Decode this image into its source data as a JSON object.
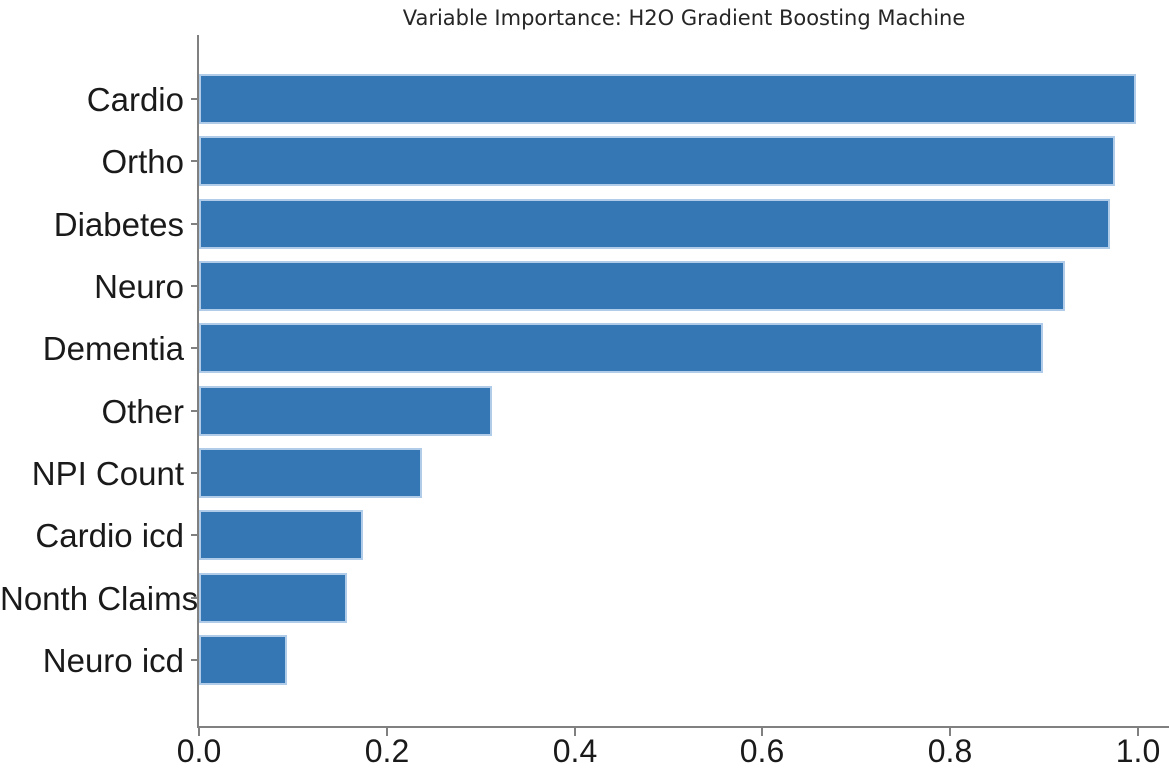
{
  "chart_data": {
    "type": "bar",
    "orientation": "horizontal",
    "title": "Variable Importance: H2O Gradient Boosting Machine",
    "categories": [
      "Cardio",
      "Ortho",
      "Diabetes",
      "Neuro",
      "Dementia",
      "Other",
      "NPI Count",
      "Cardio icd",
      "Nonth Claims",
      "Neuro icd"
    ],
    "values": [
      0.998,
      0.975,
      0.97,
      0.922,
      0.899,
      0.312,
      0.238,
      0.175,
      0.158,
      0.094
    ],
    "xlabel": "",
    "ylabel": "",
    "xlim": [
      0.0,
      1.0
    ],
    "x_ticks": [
      0.0,
      0.2,
      0.4,
      0.6,
      0.8,
      1.0
    ],
    "x_tick_labels": [
      "0.0",
      "0.2",
      "0.4",
      "0.6",
      "0.8",
      "1.0"
    ],
    "grid": false,
    "legend": "none",
    "colors": {
      "bar_fill": "#3577b4",
      "bar_edge": "#b0cce8",
      "axis": "#808080",
      "text": "#1a1a1a",
      "title_text": "#262626",
      "background": "#ffffff"
    }
  }
}
